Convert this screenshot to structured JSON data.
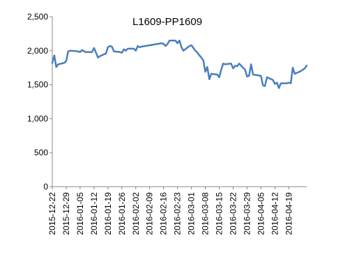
{
  "chart_data": {
    "type": "line",
    "title": "L1609-PP1609",
    "xlabel": "",
    "ylabel": "",
    "ylim": [
      0,
      2500
    ],
    "yticks": [
      "0",
      "500",
      "1,000",
      "1,500",
      "2,000",
      "2,500"
    ],
    "ytick_values": [
      0,
      500,
      1000,
      1500,
      2000,
      2500
    ],
    "grid": false,
    "legend": "none",
    "xlim": [
      "2015-12-22",
      "2016-04-28"
    ],
    "xtick_labels": [
      "2015-12-22",
      "2015-12-29",
      "2016-01-05",
      "2016-01-12",
      "2016-01-19",
      "2016-01-26",
      "2016-02-02",
      "2016-02-09",
      "2016-02-16",
      "2016-02-23",
      "2016-03-01",
      "2016-03-08",
      "2016-03-15",
      "2016-03-22",
      "2016-03-29",
      "2016-04-05",
      "2016-04-12",
      "2016-04-19"
    ],
    "series": [
      {
        "color": "#4a7ebb",
        "x": [
          "2015-12-22",
          "2015-12-23",
          "2015-12-24",
          "2015-12-25",
          "2015-12-28",
          "2015-12-29",
          "2015-12-30",
          "2015-12-31",
          "2016-01-04",
          "2016-01-05",
          "2016-01-06",
          "2016-01-07",
          "2016-01-08",
          "2016-01-11",
          "2016-01-12",
          "2016-01-13",
          "2016-01-14",
          "2016-01-15",
          "2016-01-18",
          "2016-01-19",
          "2016-01-20",
          "2016-01-21",
          "2016-01-22",
          "2016-01-25",
          "2016-01-26",
          "2016-01-27",
          "2016-01-28",
          "2016-01-29",
          "2016-02-01",
          "2016-02-02",
          "2016-02-03",
          "2016-02-04",
          "2016-02-05",
          "2016-02-15",
          "2016-02-16",
          "2016-02-17",
          "2016-02-18",
          "2016-02-19",
          "2016-02-22",
          "2016-02-23",
          "2016-02-24",
          "2016-02-25",
          "2016-02-26",
          "2016-02-29",
          "2016-03-01",
          "2016-03-02",
          "2016-03-03",
          "2016-03-04",
          "2016-03-07",
          "2016-03-08",
          "2016-03-09",
          "2016-03-10",
          "2016-03-11",
          "2016-03-14",
          "2016-03-15",
          "2016-03-16",
          "2016-03-17",
          "2016-03-18",
          "2016-03-21",
          "2016-03-22",
          "2016-03-23",
          "2016-03-24",
          "2016-03-25",
          "2016-03-28",
          "2016-03-29",
          "2016-03-30",
          "2016-03-31",
          "2016-04-01",
          "2016-04-05",
          "2016-04-06",
          "2016-04-07",
          "2016-04-08",
          "2016-04-11",
          "2016-04-12",
          "2016-04-13",
          "2016-04-14",
          "2016-04-15",
          "2016-04-18",
          "2016-04-19",
          "2016-04-20",
          "2016-04-21",
          "2016-04-22",
          "2016-04-25",
          "2016-04-26",
          "2016-04-27",
          "2016-04-28"
        ],
        "values": [
          1820,
          1930,
          1760,
          1800,
          1820,
          1850,
          1990,
          2000,
          1990,
          1980,
          2010,
          1990,
          1980,
          1980,
          2040,
          1970,
          1900,
          1920,
          1960,
          2050,
          2070,
          2060,
          1990,
          1980,
          1970,
          2020,
          2000,
          2030,
          2030,
          2000,
          2070,
          2050,
          2060,
          2110,
          2100,
          2070,
          2100,
          2150,
          2150,
          2110,
          2150,
          2050,
          2000,
          2070,
          2080,
          2040,
          2000,
          1970,
          1860,
          1690,
          1760,
          1580,
          1660,
          1650,
          1610,
          1720,
          1810,
          1800,
          1810,
          1740,
          1780,
          1770,
          1810,
          1720,
          1620,
          1630,
          1800,
          1650,
          1630,
          1490,
          1480,
          1610,
          1570,
          1510,
          1530,
          1450,
          1520,
          1520,
          1530,
          1520,
          1750,
          1660,
          1700,
          1720,
          1740,
          1780
        ]
      }
    ]
  }
}
